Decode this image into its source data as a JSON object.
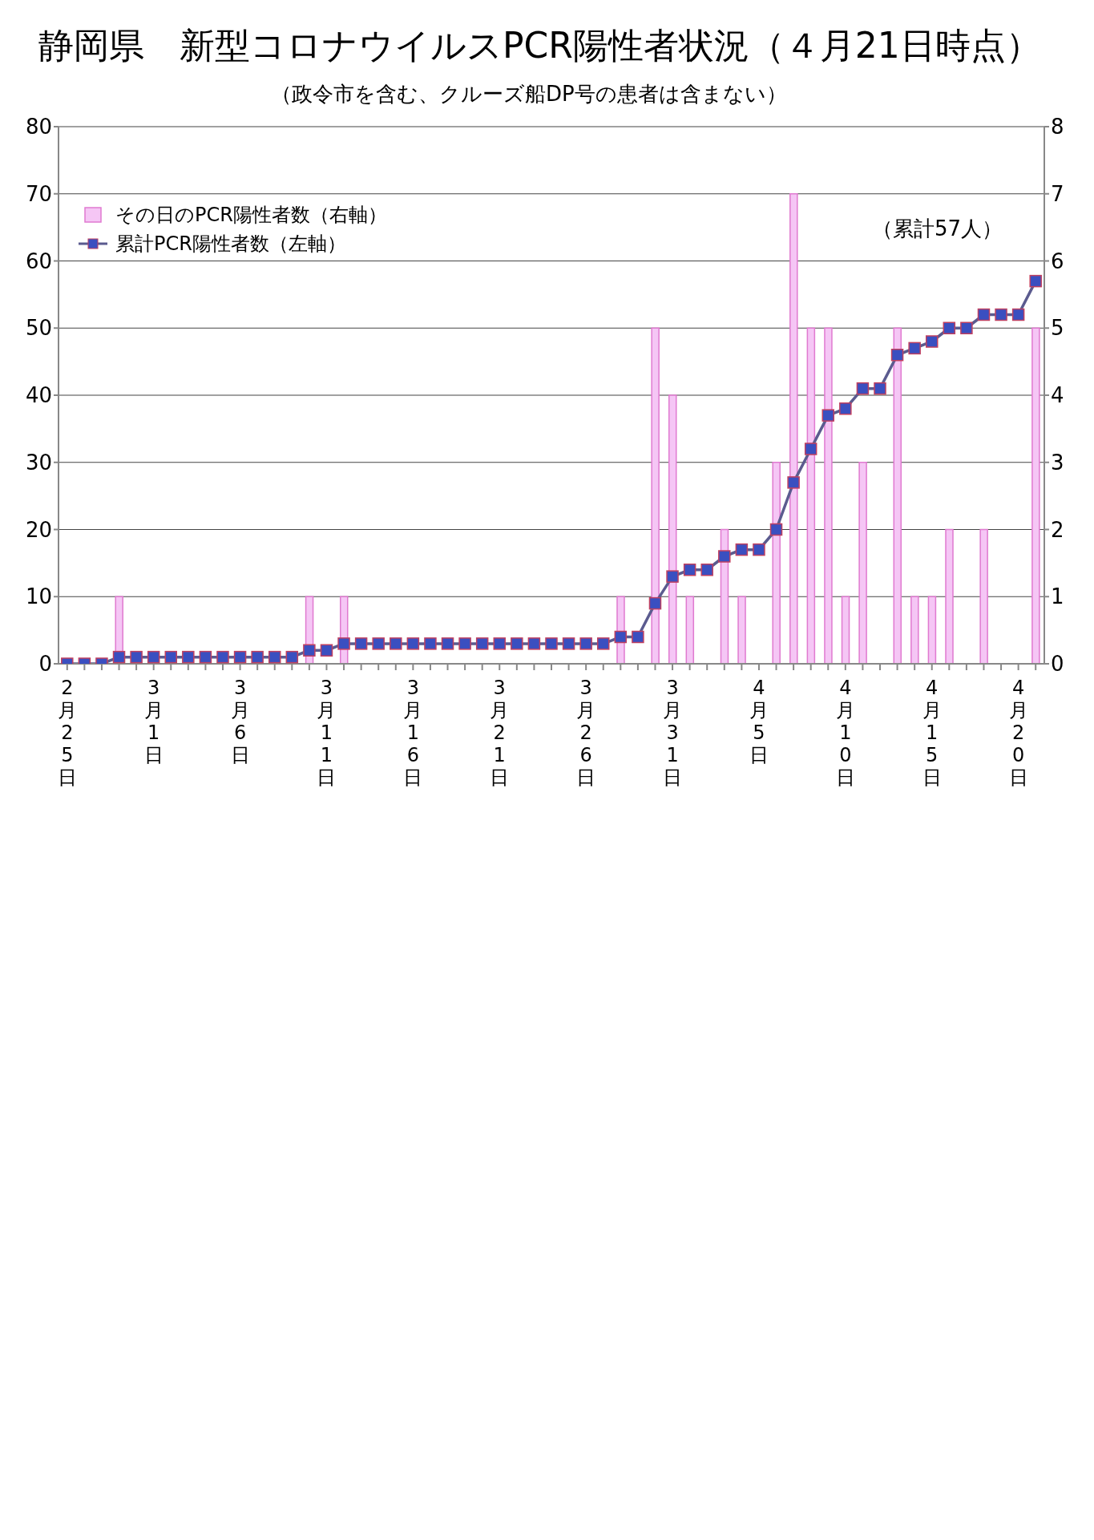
{
  "chart_data": {
    "type": "bar",
    "title": "静岡県　新型コロナウイルスPCR陽性者状況（４月21日時点）",
    "subtitle": "（政令市を含む、クルーズ船DP号の患者は含まない）",
    "annotations": [
      "（累計57人）"
    ],
    "categories": [
      "2月25日",
      null,
      null,
      null,
      null,
      "3月1日",
      null,
      null,
      null,
      null,
      "3月6日",
      null,
      null,
      null,
      null,
      "3月11日",
      null,
      null,
      null,
      null,
      "3月16日",
      null,
      null,
      null,
      null,
      "3月21日",
      null,
      null,
      null,
      null,
      "3月26日",
      null,
      null,
      null,
      null,
      "3月31日",
      null,
      null,
      null,
      null,
      "4月5日",
      null,
      null,
      null,
      null,
      "4月10日",
      null,
      null,
      null,
      null,
      "4月15日",
      null,
      null,
      null,
      null,
      "4月20日",
      null
    ],
    "series": [
      {
        "name": "その日のPCR陽性者数（右軸）",
        "axis": "y2",
        "color": "#f5c6f5",
        "values": [
          null,
          null,
          null,
          1,
          null,
          null,
          null,
          null,
          null,
          null,
          null,
          null,
          null,
          null,
          1,
          null,
          1,
          null,
          null,
          null,
          null,
          null,
          null,
          null,
          null,
          null,
          null,
          null,
          null,
          null,
          null,
          null,
          1,
          null,
          5,
          4,
          1,
          null,
          2,
          1,
          null,
          3,
          7,
          5,
          5,
          1,
          3,
          null,
          5,
          1,
          1,
          2,
          null,
          2,
          null,
          null,
          5
        ]
      },
      {
        "name": "累計PCR陽性者数（左軸）",
        "type": "line",
        "color": "#5b5b8f",
        "values": [
          0,
          0,
          0,
          1,
          1,
          1,
          1,
          1,
          1,
          1,
          1,
          1,
          1,
          1,
          2,
          2,
          3,
          3,
          3,
          3,
          3,
          3,
          3,
          3,
          3,
          3,
          3,
          3,
          3,
          3,
          3,
          3,
          4,
          4,
          9,
          13,
          14,
          14,
          16,
          17,
          17,
          20,
          27,
          32,
          37,
          38,
          41,
          41,
          46,
          47,
          48,
          50,
          50,
          52,
          52,
          52,
          57
        ]
      }
    ],
    "ylim": [
      0,
      80
    ],
    "yticks": [
      0,
      10,
      20,
      30,
      40,
      50,
      60,
      70,
      80
    ],
    "y2lim": [
      0,
      8
    ],
    "y2ticks": [
      0,
      1,
      2,
      3,
      4,
      5,
      6,
      7,
      8
    ],
    "grid": "y",
    "legend": "top left",
    "marker": "square",
    "line_style": "solid"
  }
}
